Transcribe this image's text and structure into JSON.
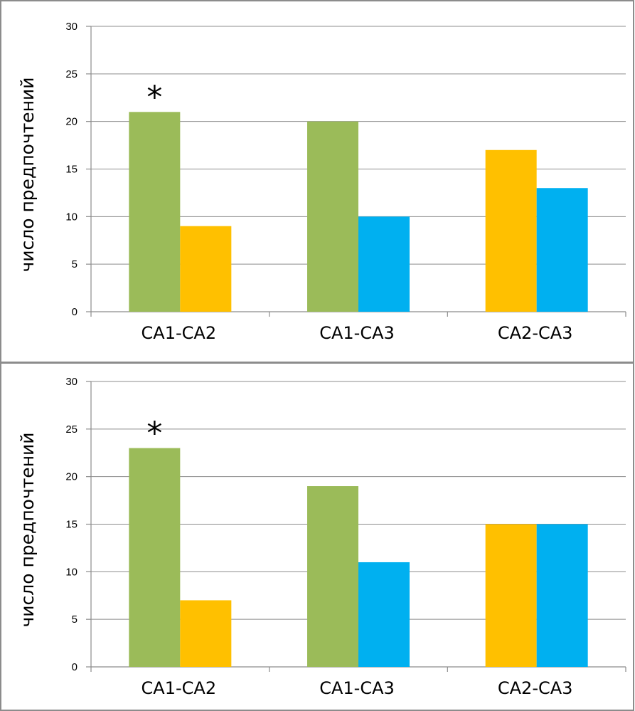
{
  "colors": {
    "CA1": "#9bbb59",
    "CA2": "#ffc000",
    "CA3": "#00b0f0"
  },
  "chart_data": [
    {
      "type": "bar",
      "ylabel": "число предпочтений",
      "ylim": [
        0,
        30
      ],
      "yticks": [
        "0",
        "5",
        "10",
        "15",
        "20",
        "25",
        "30"
      ],
      "grid": true,
      "categories": [
        "CA1-CA2",
        "CA1-CA3",
        "CA2-CA3"
      ],
      "groups": [
        {
          "bars": [
            {
              "series": "CA1",
              "value": 21
            },
            {
              "series": "CA2",
              "value": 9
            }
          ],
          "annotation": "*"
        },
        {
          "bars": [
            {
              "series": "CA1",
              "value": 20
            },
            {
              "series": "CA3",
              "value": 10
            }
          ],
          "annotation": ""
        },
        {
          "bars": [
            {
              "series": "CA2",
              "value": 17
            },
            {
              "series": "CA3",
              "value": 13
            }
          ],
          "annotation": ""
        }
      ]
    },
    {
      "type": "bar",
      "ylabel": "число предпочтений",
      "ylim": [
        0,
        30
      ],
      "yticks": [
        "0",
        "5",
        "10",
        "15",
        "20",
        "25",
        "30"
      ],
      "grid": true,
      "categories": [
        "CA1-CA2",
        "CA1-CA3",
        "CA2-CA3"
      ],
      "groups": [
        {
          "bars": [
            {
              "series": "CA1",
              "value": 23
            },
            {
              "series": "CA2",
              "value": 7
            }
          ],
          "annotation": "*"
        },
        {
          "bars": [
            {
              "series": "CA1",
              "value": 19
            },
            {
              "series": "CA3",
              "value": 11
            }
          ],
          "annotation": ""
        },
        {
          "bars": [
            {
              "series": "CA2",
              "value": 15
            },
            {
              "series": "CA3",
              "value": 15
            }
          ],
          "annotation": ""
        }
      ]
    }
  ]
}
